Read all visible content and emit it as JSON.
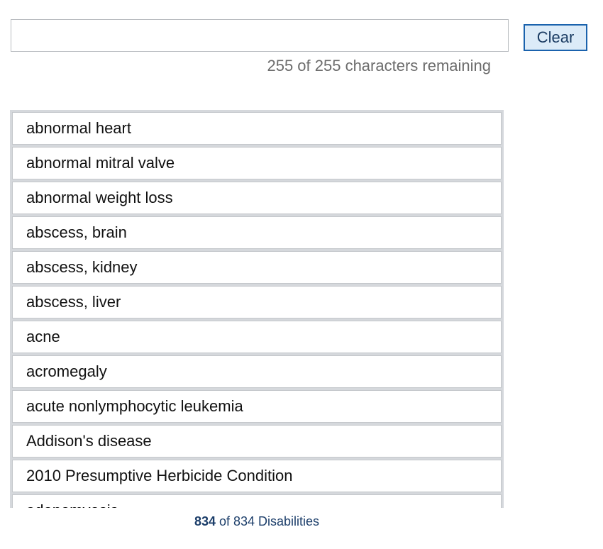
{
  "search": {
    "value": "",
    "placeholder": ""
  },
  "clear_button": {
    "label": "Clear"
  },
  "char_counter": {
    "text": "255 of 255 characters remaining"
  },
  "results": {
    "items": [
      "abnormal heart",
      "abnormal mitral valve",
      "abnormal weight loss",
      "abscess, brain",
      "abscess, kidney",
      "abscess, liver",
      "acne",
      "acromegaly",
      "acute nonlymphocytic leukemia",
      "Addison's disease",
      "2010 Presumptive Herbicide Condition",
      "adenomyosis"
    ]
  },
  "result_count": {
    "shown": "834",
    "suffix": " of 834 Disabilities"
  },
  "colors": {
    "button_bg": "#dcebf8",
    "button_border": "#1a62ad",
    "count_text": "#1c3e6a",
    "list_border": "#d5d8dc"
  }
}
